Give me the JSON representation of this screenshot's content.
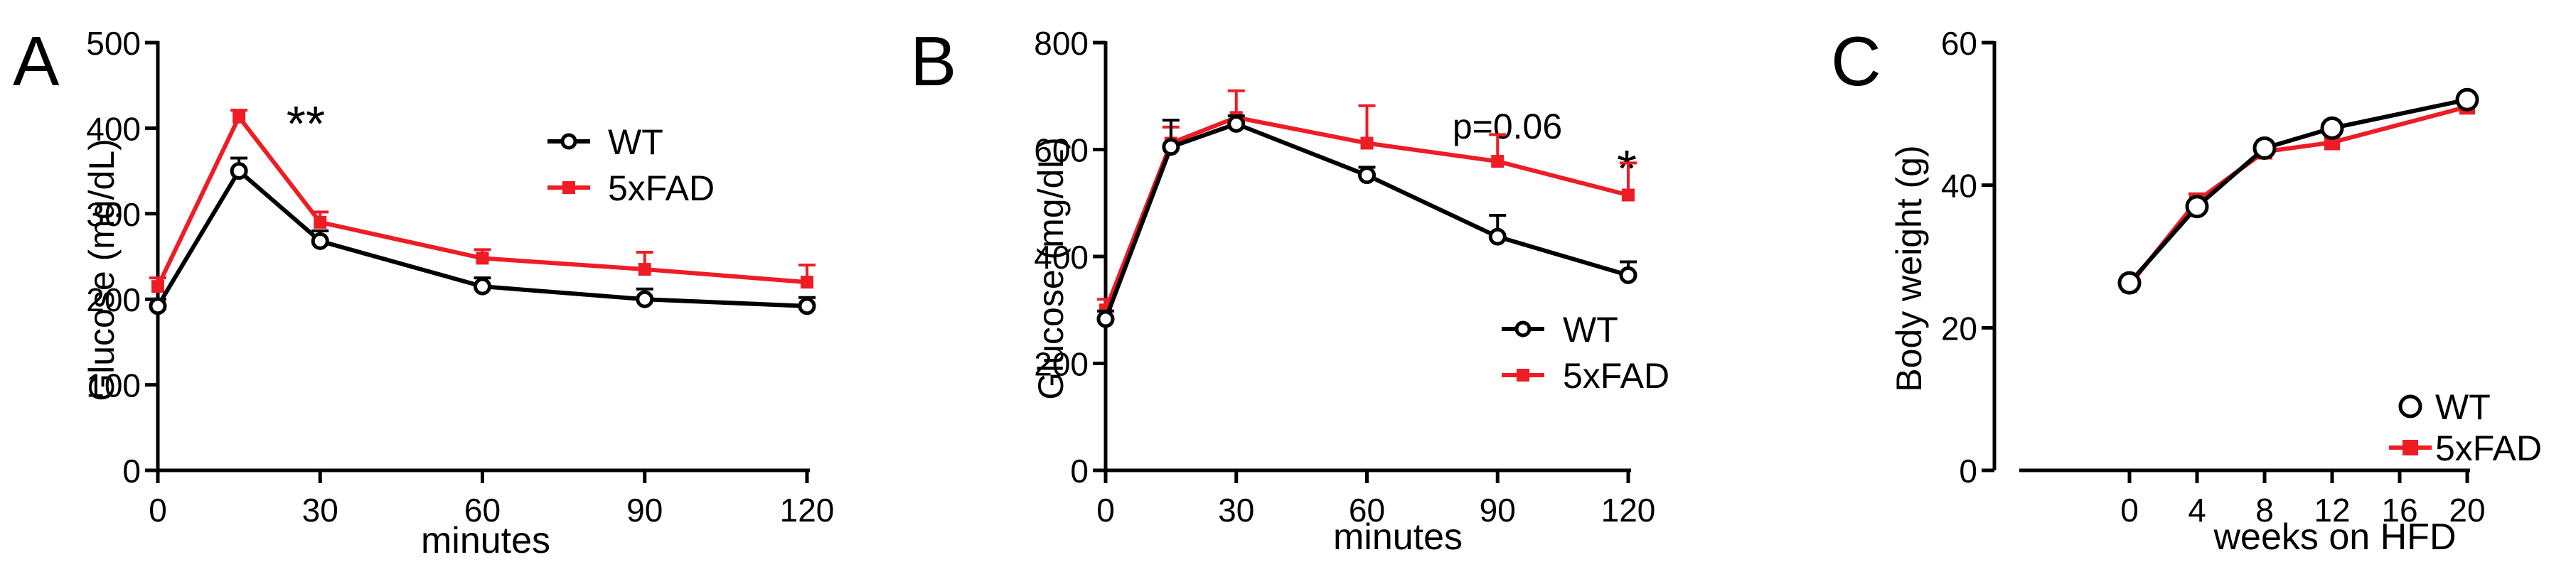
{
  "chart_data": [
    {
      "type": "line",
      "panel_letter": "A",
      "xlabel": "minutes",
      "ylabel": "Glucose  (mg/dL)",
      "xlim": [
        0,
        120
      ],
      "ylim": [
        0,
        500
      ],
      "xticks": [
        "0",
        "30",
        "60",
        "90",
        "120"
      ],
      "yticks": [
        "0",
        "100",
        "200",
        "300",
        "400",
        "500"
      ],
      "x": [
        0,
        15,
        30,
        60,
        90,
        120
      ],
      "series": [
        {
          "name": "WT",
          "color": "#000000",
          "marker": "open-circle",
          "values": [
            192,
            350,
            268,
            215,
            200,
            192
          ],
          "errors": [
            8,
            15,
            12,
            10,
            12,
            10
          ]
        },
        {
          "name": "5xFAD",
          "color": "#ee1c24",
          "marker": "filled-square",
          "values": [
            215,
            413,
            290,
            248,
            235,
            220
          ],
          "errors": [
            10,
            8,
            12,
            10,
            20,
            20
          ]
        }
      ],
      "annotations": [
        {
          "text": "**",
          "x": 15
        }
      ],
      "legend": "top-right"
    },
    {
      "type": "line",
      "panel_letter": "B",
      "xlabel": "minutes",
      "ylabel": "Glucose  (mg/dL)",
      "xlim": [
        0,
        120
      ],
      "ylim": [
        0,
        800
      ],
      "xticks": [
        "0",
        "30",
        "60",
        "90",
        "120"
      ],
      "yticks": [
        "0",
        "200",
        "400",
        "600",
        "800"
      ],
      "x": [
        0,
        15,
        30,
        60,
        90,
        120
      ],
      "series": [
        {
          "name": "WT",
          "color": "#000000",
          "marker": "open-circle",
          "values": [
            283,
            605,
            648,
            552,
            437,
            365
          ],
          "errors": [
            15,
            50,
            15,
            15,
            40,
            25
          ]
        },
        {
          "name": "5xFAD",
          "color": "#ee1c24",
          "marker": "filled-square",
          "values": [
            300,
            612,
            660,
            612,
            578,
            515
          ],
          "errors": [
            20,
            30,
            50,
            70,
            50,
            60
          ]
        }
      ],
      "annotations": [
        {
          "text": "p=0.06",
          "x": 90
        },
        {
          "text": "*",
          "x": 120
        }
      ],
      "legend": "bottom-right"
    },
    {
      "type": "line",
      "panel_letter": "C",
      "xlabel": "weeks on HFD",
      "ylabel": "Body weight (g)",
      "xlim": [
        -8,
        20
      ],
      "ylim": [
        0,
        60
      ],
      "xticks": [
        "0",
        "4",
        "8",
        "12",
        "16",
        "20"
      ],
      "yticks": [
        "0",
        "20",
        "40",
        "60"
      ],
      "x": [
        0,
        4,
        8,
        12,
        20
      ],
      "series": [
        {
          "name": "WT",
          "color": "#000000",
          "marker": "open-circle",
          "values": [
            26.3,
            37,
            45.2,
            48,
            52
          ],
          "errors": [
            0.5,
            0.8,
            1,
            1,
            1
          ]
        },
        {
          "name": "5xFAD",
          "color": "#ee1c24",
          "marker": "filled-square",
          "values": [
            26,
            37.8,
            44.7,
            46,
            51
          ],
          "errors": [
            0.5,
            1,
            1,
            1,
            1
          ]
        }
      ],
      "annotations": [],
      "legend": "bottom-right"
    }
  ]
}
